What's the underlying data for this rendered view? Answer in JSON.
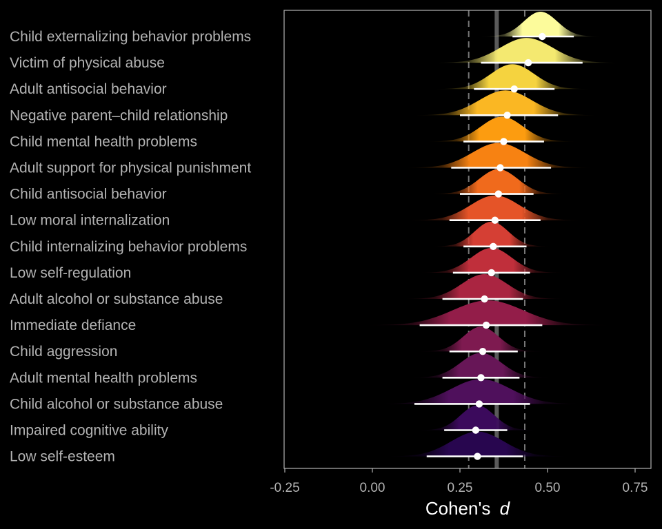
{
  "chart_data": {
    "type": "ridgeline",
    "xlabel": "Cohen's",
    "xlabel_italic": "d",
    "xlim": [
      -0.25,
      0.8
    ],
    "xticks": [
      -0.25,
      0.0,
      0.25,
      0.5,
      0.75
    ],
    "xtick_labels": [
      "-0.25",
      "0.00",
      "0.25",
      "0.50",
      "0.75"
    ],
    "reference_lines": {
      "mean": 0.355,
      "ci_lower": 0.275,
      "ci_upper": 0.435
    },
    "series": [
      {
        "label": "Child externalizing behavior problems",
        "mean": 0.485,
        "ci": [
          0.4,
          0.575
        ],
        "mode": 0.48,
        "sd": 0.048,
        "color": "#fcfb9b"
      },
      {
        "label": "Victim of physical abuse",
        "mean": 0.445,
        "ci": [
          0.31,
          0.6
        ],
        "mode": 0.44,
        "sd": 0.075,
        "color": "#f4e970"
      },
      {
        "label": "Adult antisocial behavior",
        "mean": 0.405,
        "ci": [
          0.29,
          0.52
        ],
        "mode": 0.4,
        "sd": 0.062,
        "color": "#f5d33f"
      },
      {
        "label": "Negative parent–child relationship",
        "mean": 0.385,
        "ci": [
          0.25,
          0.53
        ],
        "mode": 0.38,
        "sd": 0.075,
        "color": "#fab723"
      },
      {
        "label": "Child mental health problems",
        "mean": 0.375,
        "ci": [
          0.26,
          0.49
        ],
        "mode": 0.37,
        "sd": 0.06,
        "color": "#fc9c10"
      },
      {
        "label": "Adult support for physical punishment",
        "mean": 0.365,
        "ci": [
          0.225,
          0.51
        ],
        "mode": 0.36,
        "sd": 0.075,
        "color": "#f78212"
      },
      {
        "label": "Child antisocial behavior",
        "mean": 0.36,
        "ci": [
          0.25,
          0.46
        ],
        "mode": 0.36,
        "sd": 0.055,
        "color": "#f06a1c"
      },
      {
        "label": "Low moral internalization",
        "mean": 0.35,
        "ci": [
          0.22,
          0.48
        ],
        "mode": 0.35,
        "sd": 0.07,
        "color": "#e55428"
      },
      {
        "label": "Child internalizing behavior problems",
        "mean": 0.345,
        "ci": [
          0.26,
          0.44
        ],
        "mode": 0.34,
        "sd": 0.048,
        "color": "#d53f34"
      },
      {
        "label": "Low self-regulation",
        "mean": 0.34,
        "ci": [
          0.23,
          0.45
        ],
        "mode": 0.34,
        "sd": 0.058,
        "color": "#c02f3b"
      },
      {
        "label": "Adult alcohol or substance abuse",
        "mean": 0.32,
        "ci": [
          0.2,
          0.43
        ],
        "mode": 0.32,
        "sd": 0.065,
        "color": "#aa2541"
      },
      {
        "label": "Immediate defiance",
        "mean": 0.325,
        "ci": [
          0.135,
          0.485
        ],
        "mode": 0.33,
        "sd": 0.1,
        "color": "#931d49"
      },
      {
        "label": "Child aggression",
        "mean": 0.315,
        "ci": [
          0.22,
          0.415
        ],
        "mode": 0.31,
        "sd": 0.05,
        "color": "#7e1a50"
      },
      {
        "label": "Adult mental health problems",
        "mean": 0.31,
        "ci": [
          0.2,
          0.42
        ],
        "mode": 0.31,
        "sd": 0.058,
        "color": "#671657"
      },
      {
        "label": "Child alcohol or substance abuse",
        "mean": 0.305,
        "ci": [
          0.12,
          0.45
        ],
        "mode": 0.31,
        "sd": 0.085,
        "color": "#4f105c"
      },
      {
        "label": "Impaired cognitive ability",
        "mean": 0.295,
        "ci": [
          0.205,
          0.385
        ],
        "mode": 0.3,
        "sd": 0.048,
        "color": "#3b0a5c"
      },
      {
        "label": "Low self-esteem",
        "mean": 0.3,
        "ci": [
          0.155,
          0.43
        ],
        "mode": 0.3,
        "sd": 0.075,
        "color": "#28064f"
      }
    ]
  }
}
